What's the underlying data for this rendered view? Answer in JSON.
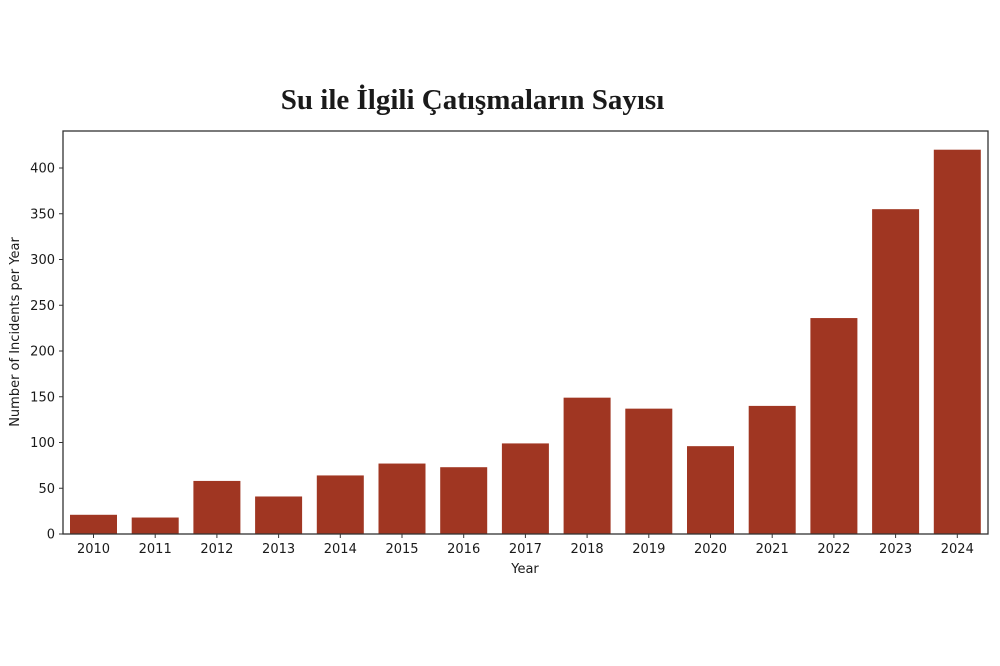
{
  "chart_data": {
    "type": "bar",
    "title": "Su ile İlgili Çatışmaların Sayısı",
    "xlabel": "Year",
    "ylabel": "Number of Incidents per Year",
    "categories": [
      "2010",
      "2011",
      "2012",
      "2013",
      "2014",
      "2015",
      "2016",
      "2017",
      "2018",
      "2019",
      "2020",
      "2021",
      "2022",
      "2023",
      "2024"
    ],
    "values": [
      21,
      18,
      58,
      41,
      64,
      77,
      73,
      99,
      149,
      137,
      96,
      140,
      236,
      355,
      420
    ],
    "yticks": [
      0,
      50,
      100,
      150,
      200,
      250,
      300,
      350,
      400
    ],
    "ylim": [
      0,
      441
    ],
    "grid": false,
    "legend": null,
    "bar_color": "#a03622"
  }
}
